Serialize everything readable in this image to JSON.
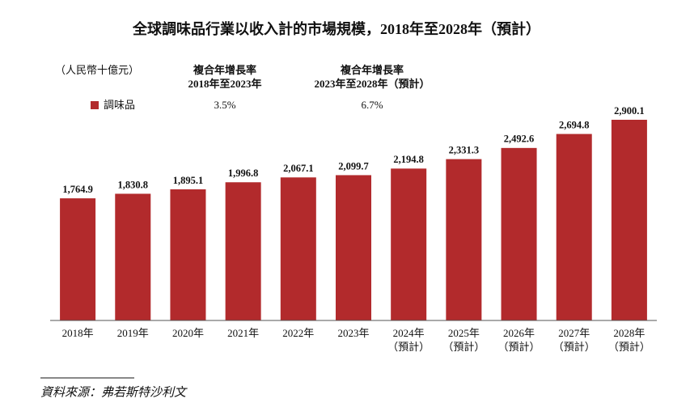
{
  "chart_data": {
    "type": "bar",
    "title": "全球調味品行業以收入計的市場規模，2018年至2028年（預計）",
    "unit_label": "（人民幣十億元）",
    "categories": [
      "2018年",
      "2019年",
      "2020年",
      "2021年",
      "2022年",
      "2023年",
      "2024年",
      "2025年",
      "2026年",
      "2027年",
      "2028年"
    ],
    "category_notes": [
      null,
      null,
      null,
      null,
      null,
      null,
      "（預計）",
      "（預計）",
      "（預計）",
      "（預計）",
      "（預計）"
    ],
    "series": [
      {
        "name": "調味品",
        "color": "#b22a2c",
        "values": [
          1764.9,
          1830.8,
          1895.1,
          1996.8,
          2067.1,
          2099.7,
          2194.8,
          2331.3,
          2492.6,
          2694.8,
          2900.1
        ],
        "value_labels": [
          "1,764.9",
          "1,830.8",
          "1,895.1",
          "1,996.8",
          "2,067.1",
          "2,099.7",
          "2,194.8",
          "2,331.3",
          "2,492.6",
          "2,694.8",
          "2,900.1"
        ]
      }
    ],
    "cagr": {
      "headers": [
        [
          "複合年增長率",
          "2018年至2023年"
        ],
        [
          "複合年增長率",
          "2023年至2028年（預計）"
        ]
      ],
      "values": [
        "3.5%",
        "6.7%"
      ]
    },
    "source": "資料來源：弗若斯特沙利文"
  }
}
